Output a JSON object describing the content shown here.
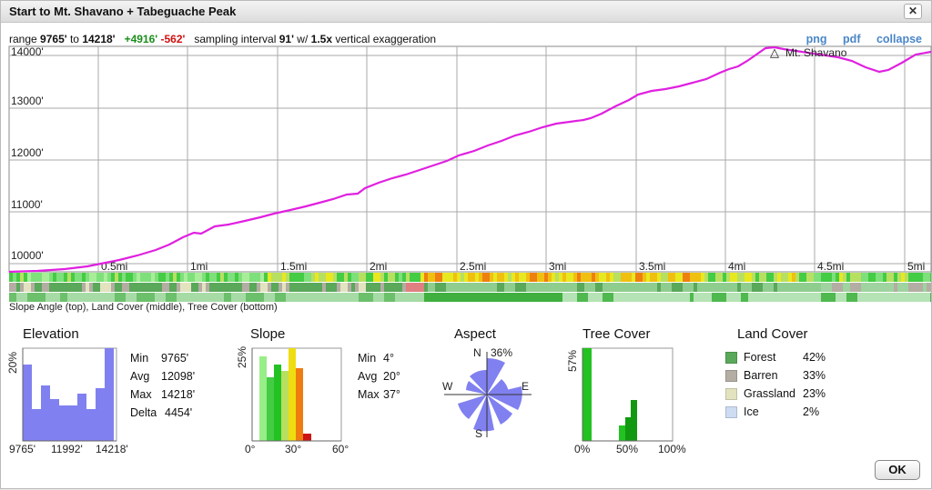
{
  "window": {
    "title": "Start to Mt. Shavano + Tabeguache Peak",
    "close_label": "✕",
    "ok_label": "OK"
  },
  "stats": {
    "range_label": "range",
    "range_min": "9765'",
    "to_label": "to",
    "range_max": "14218'",
    "gain": "+4916'",
    "loss": "-562'",
    "sampling_label": "sampling interval",
    "sampling": "91'",
    "w_label": "w/",
    "exaggeration": "1.5x",
    "exaggeration_label": "vertical exaggeration"
  },
  "links": {
    "png": "png",
    "pdf": "pdf",
    "collapse": "collapse"
  },
  "profile": {
    "y_ticks": [
      "14000'",
      "13000'",
      "12000'",
      "11000'",
      "10000'"
    ],
    "x_ticks": [
      "0.5mi",
      "1mi",
      "1.5mi",
      "2mi",
      "2.5mi",
      "3mi",
      "3.5mi",
      "4mi",
      "4.5mi",
      "5mi"
    ],
    "summit_label": "Mt. Shavano",
    "line_color": "#e020e0"
  },
  "strips_caption": "Slope Angle (top), Land Cover (middle), Tree Cover (bottom)",
  "elevation": {
    "title": "Elevation",
    "ytick": "20%",
    "xticks": [
      "9765'",
      "11992'",
      "14218'"
    ],
    "summary": [
      {
        "k": "Min",
        "v": "9765'"
      },
      {
        "k": "Avg",
        "v": "12098'"
      },
      {
        "k": "Max",
        "v": "14218'"
      },
      {
        "k": "Delta",
        "v": "4454'"
      }
    ]
  },
  "slope": {
    "title": "Slope",
    "ytick": "25%",
    "xticks": [
      "0°",
      "30°",
      "60°"
    ],
    "summary": [
      {
        "k": "Min",
        "v": "4°"
      },
      {
        "k": "Avg",
        "v": "20°"
      },
      {
        "k": "Max",
        "v": "37°"
      }
    ]
  },
  "aspect": {
    "title": "Aspect",
    "n": "N",
    "max": "36%",
    "e": "E",
    "s": "S",
    "w": "W"
  },
  "tree_cover": {
    "title": "Tree Cover",
    "ytick": "57%",
    "xticks": [
      "0%",
      "50%",
      "100%"
    ]
  },
  "land_cover": {
    "title": "Land Cover",
    "items": [
      {
        "name": "Forest",
        "pct": "42%",
        "color": "#5aa85a"
      },
      {
        "name": "Barren",
        "pct": "33%",
        "color": "#b3ada3"
      },
      {
        "name": "Grassland",
        "pct": "23%",
        "color": "#e3e3c0"
      },
      {
        "name": "Ice",
        "pct": "2%",
        "color": "#cddcf2"
      }
    ]
  }
}
